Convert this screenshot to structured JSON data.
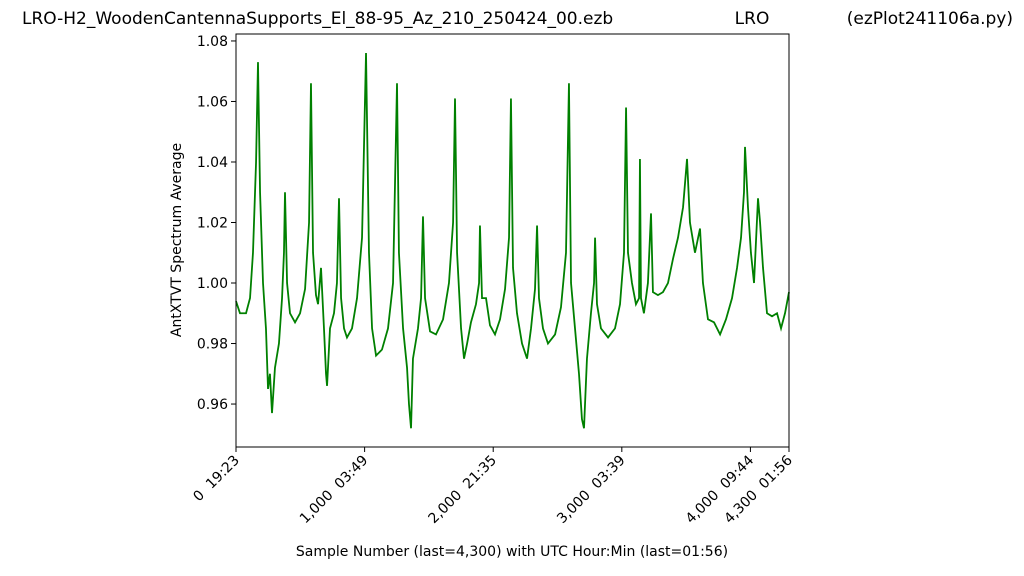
{
  "chart_data": {
    "type": "line",
    "title": "LRO-H2_WoodenCantennaSupports_El_88-95_Az_210_250424_00.ezb",
    "title_center": "LRO",
    "title_right": "(ezPlot241106a.py)",
    "xlabel": "Sample Number (last=4,300) with UTC Hour:Min (last=01:56)",
    "ylabel": "AntXTVT Spectrum Average",
    "xlim": [
      0,
      4300
    ],
    "ylim": [
      0.9458,
      1.0823
    ],
    "xticks": [
      {
        "value": 0,
        "label": "0  19:23"
      },
      {
        "value": 1000,
        "label": "1,000  03:49"
      },
      {
        "value": 2000,
        "label": "2,000  21:35"
      },
      {
        "value": 3000,
        "label": "3,000  03:39"
      },
      {
        "value": 4000,
        "label": "4,000  09:44"
      },
      {
        "value": 4300,
        "label": "4,300  01:56"
      }
    ],
    "yticks": [
      0.96,
      0.98,
      {
        "value": 1,
        "label": "1.00"
      },
      1.02,
      1.04,
      1.06,
      1.08
    ],
    "grid": false,
    "series": [
      {
        "color": "#008000",
        "x": [
          0,
          31,
          78,
          109,
          132,
          156,
          171,
          187,
          210,
          233,
          249,
          264,
          280,
          303,
          334,
          358,
          373,
          381,
          397,
          420,
          459,
          498,
          537,
          568,
          583,
          599,
          622,
          638,
          661,
          684,
          700,
          708,
          731,
          762,
          785,
          801,
          817,
          840,
          863,
          902,
          941,
          980,
          1011,
          1034,
          1058,
          1089,
          1135,
          1182,
          1221,
          1252,
          1267,
          1299,
          1330,
          1345,
          1361,
          1376,
          1415,
          1439,
          1454,
          1470,
          1509,
          1555,
          1610,
          1656,
          1688,
          1703,
          1719,
          1750,
          1773,
          1797,
          1827,
          1866,
          1890,
          1897,
          1913,
          1944,
          1975,
          2014,
          2053,
          2092,
          2123,
          2138,
          2154,
          2185,
          2224,
          2263,
          2294,
          2325,
          2341,
          2356,
          2387,
          2426,
          2481,
          2527,
          2566,
          2589,
          2605,
          2636,
          2667,
          2690,
          2706,
          2729,
          2760,
          2784,
          2792,
          2807,
          2838,
          2893,
          2947,
          2986,
          3017,
          3033,
          3048,
          3079,
          3110,
          3134,
          3141,
          3149,
          3172,
          3203,
          3227,
          3242,
          3281,
          3320,
          3359,
          3398,
          3437,
          3476,
          3507,
          3530,
          3569,
          3608,
          3631,
          3670,
          3717,
          3764,
          3810,
          3857,
          3896,
          3927,
          3950,
          3958,
          3981,
          4004,
          4028,
          4059,
          4075,
          4098,
          4129,
          4168,
          4207,
          4238,
          4269,
          4300
        ],
        "values": [
          0.994,
          0.99,
          0.99,
          0.995,
          1.01,
          1.04,
          1.073,
          1.03,
          1.0,
          0.985,
          0.965,
          0.97,
          0.957,
          0.972,
          0.98,
          0.995,
          1.01,
          1.03,
          1.0,
          0.99,
          0.987,
          0.99,
          0.998,
          1.02,
          1.066,
          1.01,
          0.996,
          0.993,
          1.005,
          0.985,
          0.97,
          0.966,
          0.985,
          0.99,
          1.0,
          1.028,
          0.995,
          0.985,
          0.982,
          0.985,
          0.995,
          1.015,
          1.076,
          1.01,
          0.985,
          0.976,
          0.978,
          0.985,
          1.0,
          1.066,
          1.01,
          0.985,
          0.972,
          0.96,
          0.952,
          0.975,
          0.985,
          0.995,
          1.022,
          0.995,
          0.984,
          0.983,
          0.988,
          1.0,
          1.02,
          1.061,
          1.01,
          0.985,
          0.975,
          0.98,
          0.987,
          0.993,
          1.0,
          1.019,
          0.995,
          0.995,
          0.986,
          0.983,
          0.988,
          0.998,
          1.015,
          1.061,
          1.005,
          0.99,
          0.98,
          0.975,
          0.985,
          0.998,
          1.019,
          0.995,
          0.985,
          0.98,
          0.983,
          0.992,
          1.01,
          1.066,
          1.0,
          0.985,
          0.97,
          0.955,
          0.952,
          0.975,
          0.99,
          1.0,
          1.015,
          0.993,
          0.985,
          0.982,
          0.985,
          0.993,
          1.01,
          1.058,
          1.01,
          1.0,
          0.993,
          0.995,
          1.041,
          0.995,
          0.99,
          1.0,
          1.023,
          0.997,
          0.996,
          0.997,
          1.0,
          1.008,
          1.015,
          1.025,
          1.041,
          1.02,
          1.01,
          1.018,
          1.0,
          0.988,
          0.987,
          0.983,
          0.988,
          0.995,
          1.005,
          1.015,
          1.03,
          1.045,
          1.025,
          1.01,
          1.0,
          1.028,
          1.02,
          1.005,
          0.99,
          0.989,
          0.99,
          0.985,
          0.99,
          0.997
        ]
      }
    ]
  }
}
